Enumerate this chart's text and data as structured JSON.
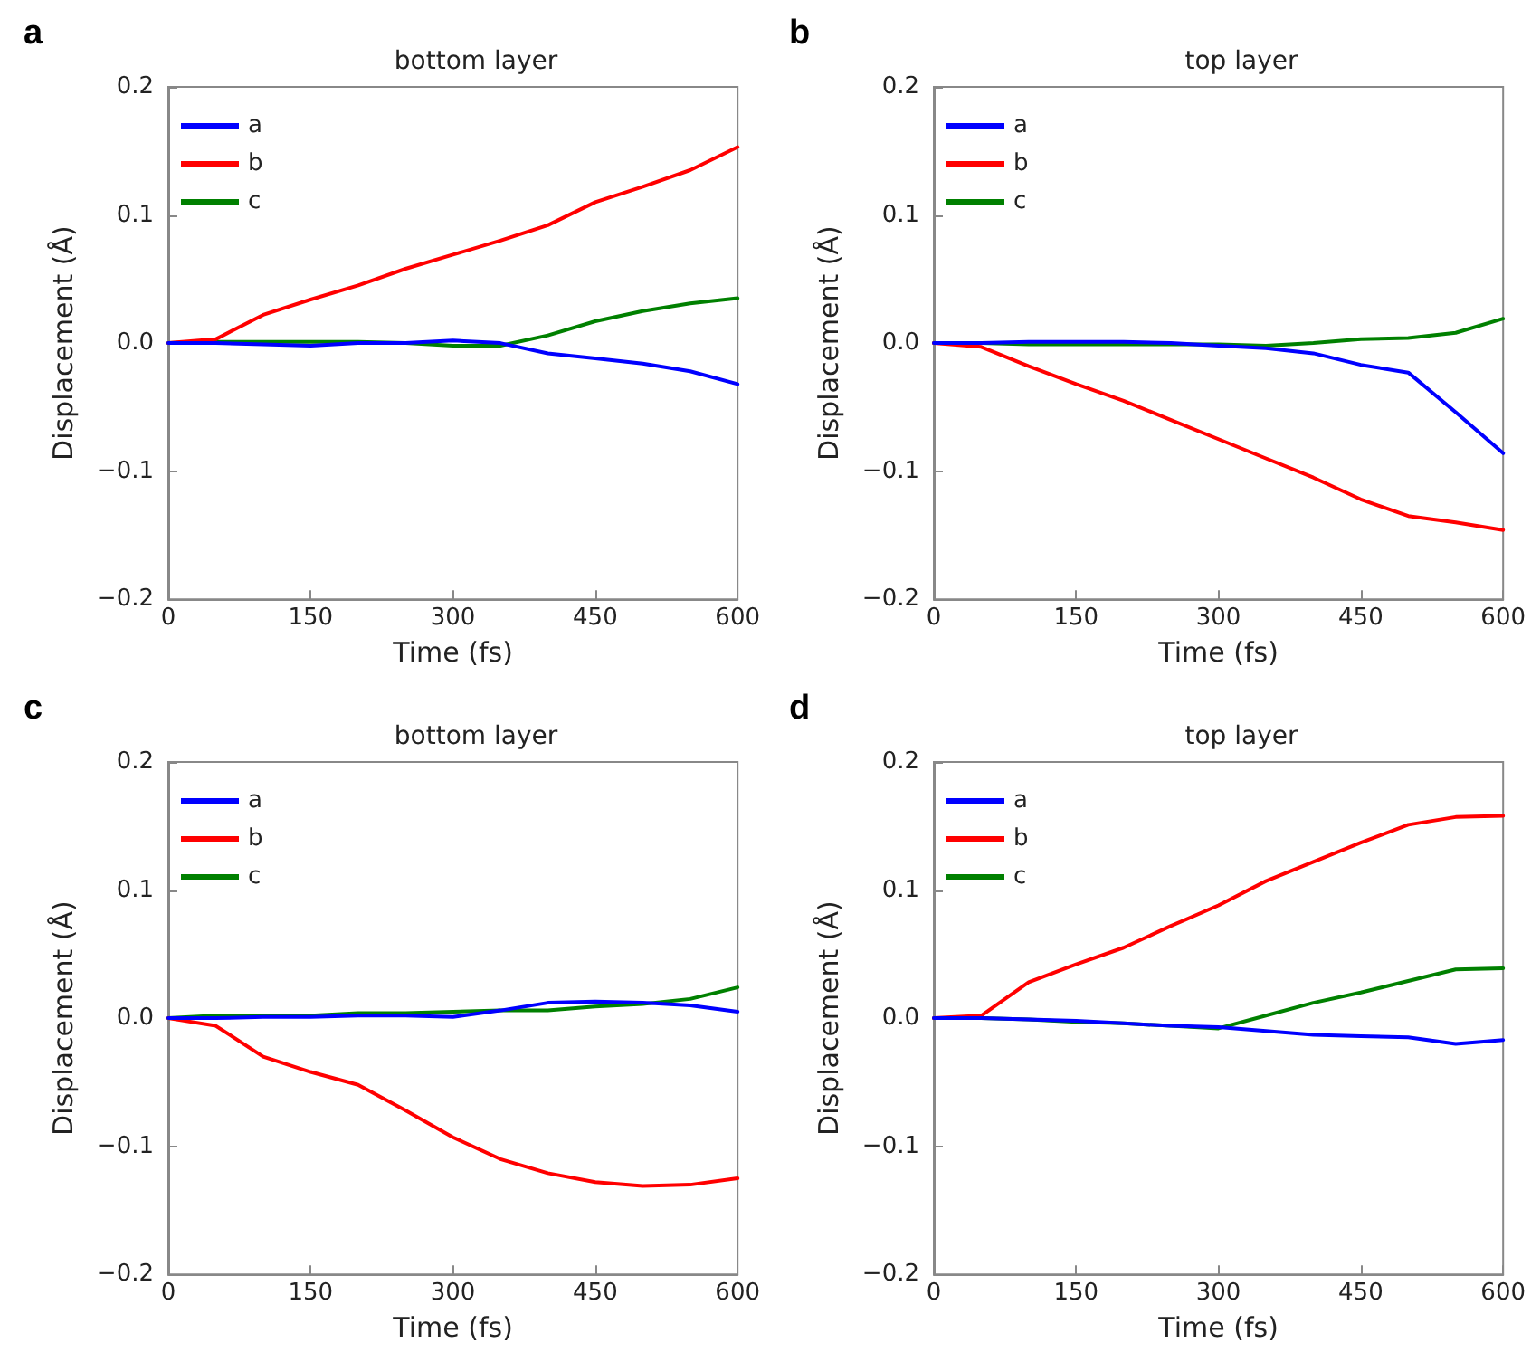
{
  "chart_data": [
    {
      "type": "line",
      "title": "bottom layer",
      "annotations": [
        "a"
      ],
      "xlabel": "Time (fs)",
      "ylabel": "Displacement (Å)",
      "x": [
        0,
        50,
        100,
        150,
        200,
        250,
        300,
        350,
        400,
        450,
        500,
        550,
        600
      ],
      "series": [
        {
          "name": "a",
          "color": "#0000ff",
          "values": [
            0,
            0,
            -0.001,
            -0.002,
            0,
            0,
            0.002,
            0,
            -0.008,
            -0.012,
            -0.016,
            -0.022,
            -0.032
          ]
        },
        {
          "name": "b",
          "color": "#ff0000",
          "values": [
            0,
            0.003,
            0.022,
            0.034,
            0.045,
            0.058,
            0.069,
            0.08,
            0.092,
            0.11,
            0.122,
            0.135,
            0.153
          ]
        },
        {
          "name": "c",
          "color": "#008000",
          "values": [
            0,
            0.001,
            0.001,
            0.001,
            0.001,
            0,
            -0.002,
            -0.002,
            0.006,
            0.017,
            0.025,
            0.031,
            0.035
          ]
        }
      ],
      "xlim": [
        0,
        600
      ],
      "xticks": [
        0,
        150,
        300,
        450,
        600
      ],
      "ylim": [
        -0.2,
        0.2
      ],
      "yticks": [
        {
          "value": -0.2,
          "label": "−0.2"
        },
        {
          "value": -0.1,
          "label": "−0.1"
        },
        {
          "value": 0,
          "label": "0.0"
        },
        {
          "value": 0.1,
          "label": "0.1"
        },
        {
          "value": 0.2,
          "label": "0.2"
        }
      ],
      "grid": false,
      "legend": "top left",
      "marker": "none",
      "line_style": "solid"
    },
    {
      "type": "line",
      "title": "top layer",
      "annotations": [
        "b"
      ],
      "xlabel": "Time (fs)",
      "ylabel": "Displacement (Å)",
      "x": [
        0,
        50,
        100,
        150,
        200,
        250,
        300,
        350,
        400,
        450,
        500,
        550,
        600
      ],
      "series": [
        {
          "name": "a",
          "color": "#0000ff",
          "values": [
            0,
            0,
            0.001,
            0.001,
            0.001,
            0,
            -0.002,
            -0.004,
            -0.008,
            -0.017,
            -0.023,
            -0.054,
            -0.086
          ]
        },
        {
          "name": "b",
          "color": "#ff0000",
          "values": [
            0,
            -0.003,
            -0.018,
            -0.032,
            -0.045,
            -0.06,
            -0.075,
            -0.09,
            -0.105,
            -0.122,
            -0.135,
            -0.14,
            -0.146
          ]
        },
        {
          "name": "c",
          "color": "#008000",
          "values": [
            0,
            0,
            -0.001,
            -0.001,
            -0.001,
            -0.001,
            -0.001,
            -0.002,
            0,
            0.003,
            0.004,
            0.008,
            0.019
          ]
        }
      ],
      "xlim": [
        0,
        600
      ],
      "xticks": [
        0,
        150,
        300,
        450,
        600
      ],
      "ylim": [
        -0.2,
        0.2
      ],
      "yticks": [
        {
          "value": -0.2,
          "label": "−0.2"
        },
        {
          "value": -0.1,
          "label": "−0.1"
        },
        {
          "value": 0,
          "label": "0.0"
        },
        {
          "value": 0.1,
          "label": "0.1"
        },
        {
          "value": 0.2,
          "label": "0.2"
        }
      ],
      "grid": false,
      "legend": "top left",
      "marker": "none",
      "line_style": "solid"
    },
    {
      "type": "line",
      "title": "bottom layer",
      "annotations": [
        "c"
      ],
      "xlabel": "Time (fs)",
      "ylabel": "Displacement (Å)",
      "x": [
        0,
        50,
        100,
        150,
        200,
        250,
        300,
        350,
        400,
        450,
        500,
        550,
        600
      ],
      "series": [
        {
          "name": "a",
          "color": "#0000ff",
          "values": [
            0,
            0,
            0.001,
            0.001,
            0.002,
            0.002,
            0.001,
            0.006,
            0.012,
            0.013,
            0.012,
            0.01,
            0.005
          ]
        },
        {
          "name": "b",
          "color": "#ff0000",
          "values": [
            0,
            -0.006,
            -0.03,
            -0.042,
            -0.052,
            -0.072,
            -0.093,
            -0.11,
            -0.121,
            -0.128,
            -0.131,
            -0.13,
            -0.125
          ]
        },
        {
          "name": "c",
          "color": "#008000",
          "values": [
            0,
            0.002,
            0.002,
            0.002,
            0.004,
            0.004,
            0.005,
            0.006,
            0.006,
            0.009,
            0.011,
            0.015,
            0.024
          ]
        }
      ],
      "xlim": [
        0,
        600
      ],
      "xticks": [
        0,
        150,
        300,
        450,
        600
      ],
      "ylim": [
        -0.2,
        0.2
      ],
      "yticks": [
        {
          "value": -0.2,
          "label": "−0.2"
        },
        {
          "value": -0.1,
          "label": "−0.1"
        },
        {
          "value": 0,
          "label": "0.0"
        },
        {
          "value": 0.1,
          "label": "0.1"
        },
        {
          "value": 0.2,
          "label": "0.2"
        }
      ],
      "grid": false,
      "legend": "top left",
      "marker": "none",
      "line_style": "solid"
    },
    {
      "type": "line",
      "title": "top layer",
      "annotations": [
        "d"
      ],
      "xlabel": "Time (fs)",
      "ylabel": "Displacement (Å)",
      "x": [
        0,
        50,
        100,
        150,
        200,
        250,
        300,
        350,
        400,
        450,
        500,
        550,
        600
      ],
      "series": [
        {
          "name": "a",
          "color": "#0000ff",
          "values": [
            0,
            0,
            -0.001,
            -0.002,
            -0.004,
            -0.006,
            -0.007,
            -0.01,
            -0.013,
            -0.014,
            -0.015,
            -0.02,
            -0.017
          ]
        },
        {
          "name": "b",
          "color": "#ff0000",
          "values": [
            0,
            0.002,
            0.028,
            0.042,
            0.055,
            0.072,
            0.088,
            0.107,
            0.122,
            0.137,
            0.151,
            0.157,
            0.158
          ]
        },
        {
          "name": "c",
          "color": "#008000",
          "values": [
            0,
            0,
            -0.001,
            -0.003,
            -0.004,
            -0.006,
            -0.008,
            0.002,
            0.012,
            0.02,
            0.029,
            0.038,
            0.039
          ]
        }
      ],
      "xlim": [
        0,
        600
      ],
      "xticks": [
        0,
        150,
        300,
        450,
        600
      ],
      "ylim": [
        -0.2,
        0.2
      ],
      "yticks": [
        {
          "value": -0.2,
          "label": "−0.2"
        },
        {
          "value": -0.1,
          "label": "−0.1"
        },
        {
          "value": 0,
          "label": "0.0"
        },
        {
          "value": 0.1,
          "label": "0.1"
        },
        {
          "value": 0.2,
          "label": "0.2"
        }
      ],
      "grid": false,
      "legend": "top left",
      "marker": "none",
      "line_style": "solid"
    }
  ]
}
